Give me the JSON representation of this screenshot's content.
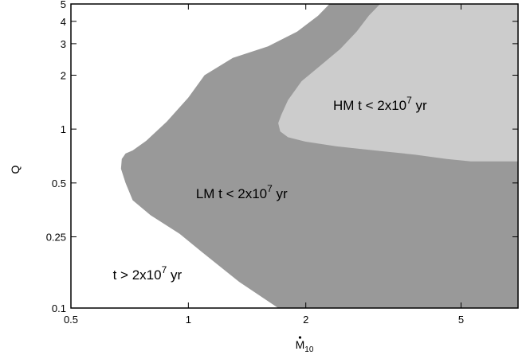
{
  "chart_data": {
    "type": "area",
    "title": "",
    "xlabel": {
      "main": "M",
      "sub": "10",
      "dot": true
    },
    "ylabel": "Q",
    "x_scale": "log",
    "y_scale": "log",
    "xlim": [
      0.5,
      7
    ],
    "ylim": [
      0.1,
      5
    ],
    "x_ticks": [
      {
        "value": 0.5,
        "label": "0.5"
      },
      {
        "value": 1,
        "label": "1"
      },
      {
        "value": 2,
        "label": "2"
      },
      {
        "value": 5,
        "label": "5"
      }
    ],
    "y_ticks": [
      {
        "value": 0.1,
        "label": "0.1"
      },
      {
        "value": 0.25,
        "label": "0.25"
      },
      {
        "value": 0.5,
        "label": "0.5"
      },
      {
        "value": 1,
        "label": "1"
      },
      {
        "value": 2,
        "label": "2"
      },
      {
        "value": 3,
        "label": "3"
      },
      {
        "value": 4,
        "label": "4"
      },
      {
        "value": 5,
        "label": "5"
      }
    ],
    "regions": [
      {
        "key": "lm",
        "color": "#999999",
        "boundary": [
          [
            1.7,
            0.1
          ],
          [
            1.35,
            0.14
          ],
          [
            1.1,
            0.2
          ],
          [
            0.95,
            0.26
          ],
          [
            0.8,
            0.33
          ],
          [
            0.72,
            0.4
          ],
          [
            0.69,
            0.5
          ],
          [
            0.672,
            0.6
          ],
          [
            0.675,
            0.68
          ],
          [
            0.69,
            0.73
          ],
          [
            0.72,
            0.76
          ],
          [
            0.78,
            0.86
          ],
          [
            0.88,
            1.1
          ],
          [
            1.0,
            1.5
          ],
          [
            1.1,
            2.0
          ],
          [
            1.3,
            2.5
          ],
          [
            1.6,
            2.9
          ],
          [
            1.9,
            3.5
          ],
          [
            2.15,
            4.3
          ],
          [
            2.3,
            5.0
          ],
          [
            3.1,
            5.0
          ],
          [
            7,
            5.0
          ],
          [
            7,
            0.1
          ]
        ],
        "label": {
          "name": "LM",
          "text": "t < 2x10",
          "exp": "7",
          "unit": " yr"
        }
      },
      {
        "key": "hm",
        "color": "#cccccc",
        "boundary": [
          [
            3.1,
            5.0
          ],
          [
            7,
            5.0
          ],
          [
            7,
            0.66
          ],
          [
            5.3,
            0.66
          ],
          [
            4.6,
            0.68
          ],
          [
            3.8,
            0.72
          ],
          [
            3.0,
            0.76
          ],
          [
            2.4,
            0.8
          ],
          [
            2.0,
            0.85
          ],
          [
            1.8,
            0.9
          ],
          [
            1.72,
            0.97
          ],
          [
            1.7,
            1.08
          ],
          [
            1.73,
            1.2
          ],
          [
            1.8,
            1.45
          ],
          [
            1.95,
            1.85
          ],
          [
            2.2,
            2.3
          ],
          [
            2.45,
            2.8
          ],
          [
            2.7,
            3.5
          ],
          [
            2.9,
            4.3
          ]
        ],
        "label": {
          "name": "HM",
          "text": "t < 2x10",
          "exp": "7",
          "unit": " yr"
        }
      },
      {
        "key": "white",
        "color": "#ffffff",
        "label": {
          "name": "",
          "text": "t > 2x10",
          "exp": "7",
          "unit": " yr"
        }
      }
    ]
  }
}
